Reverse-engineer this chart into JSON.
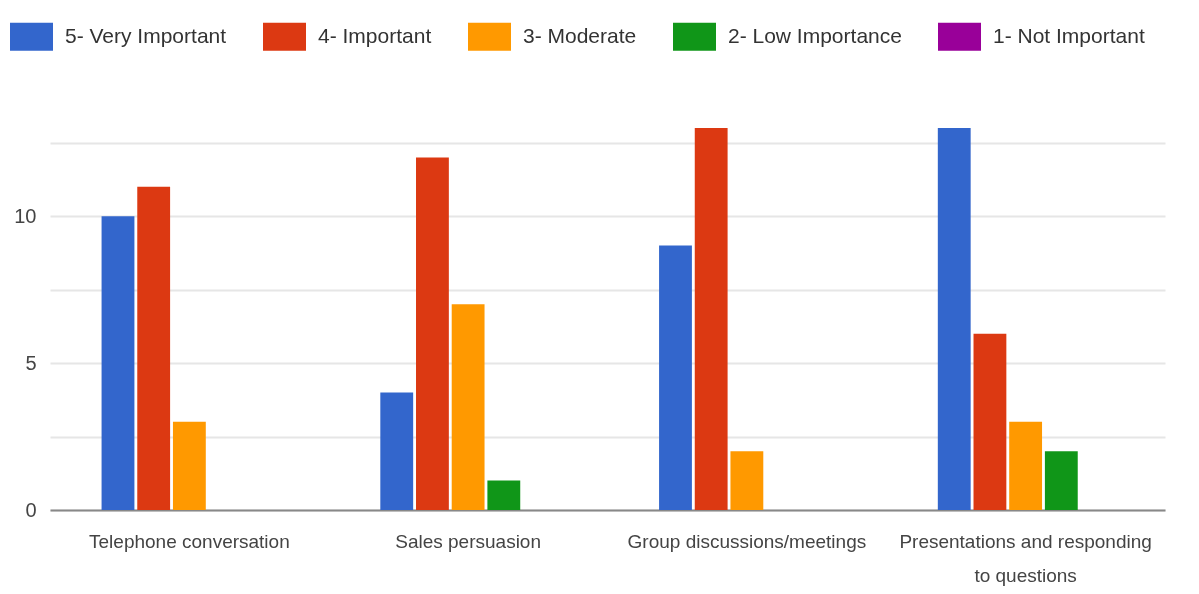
{
  "chart_data": {
    "type": "bar",
    "categories": [
      "Telephone conversation",
      "Sales persuasion",
      "Group discussions/meetings",
      "Presentations and responding to questions"
    ],
    "series": [
      {
        "name": "5- Very Important",
        "color": "#3366cc",
        "values": [
          10,
          4,
          9,
          13
        ]
      },
      {
        "name": "4- Important",
        "color": "#dc3912",
        "values": [
          11,
          12,
          13,
          6
        ]
      },
      {
        "name": "3- Moderate",
        "color": "#ff9900",
        "values": [
          3,
          7,
          2,
          3
        ]
      },
      {
        "name": "2- Low Importance",
        "color": "#109618",
        "values": [
          0,
          1,
          0,
          2
        ]
      },
      {
        "name": "1- Not Important",
        "color": "#990099",
        "values": [
          0,
          0,
          0,
          0
        ]
      }
    ],
    "ylim": [
      0,
      13
    ],
    "yticks": [
      0,
      {
        "value": 2.5,
        "label": null
      },
      5,
      {
        "value": 7.5,
        "label": null
      },
      10,
      {
        "value": 12.5,
        "label": null
      }
    ],
    "grid": "y",
    "legend": "top"
  }
}
